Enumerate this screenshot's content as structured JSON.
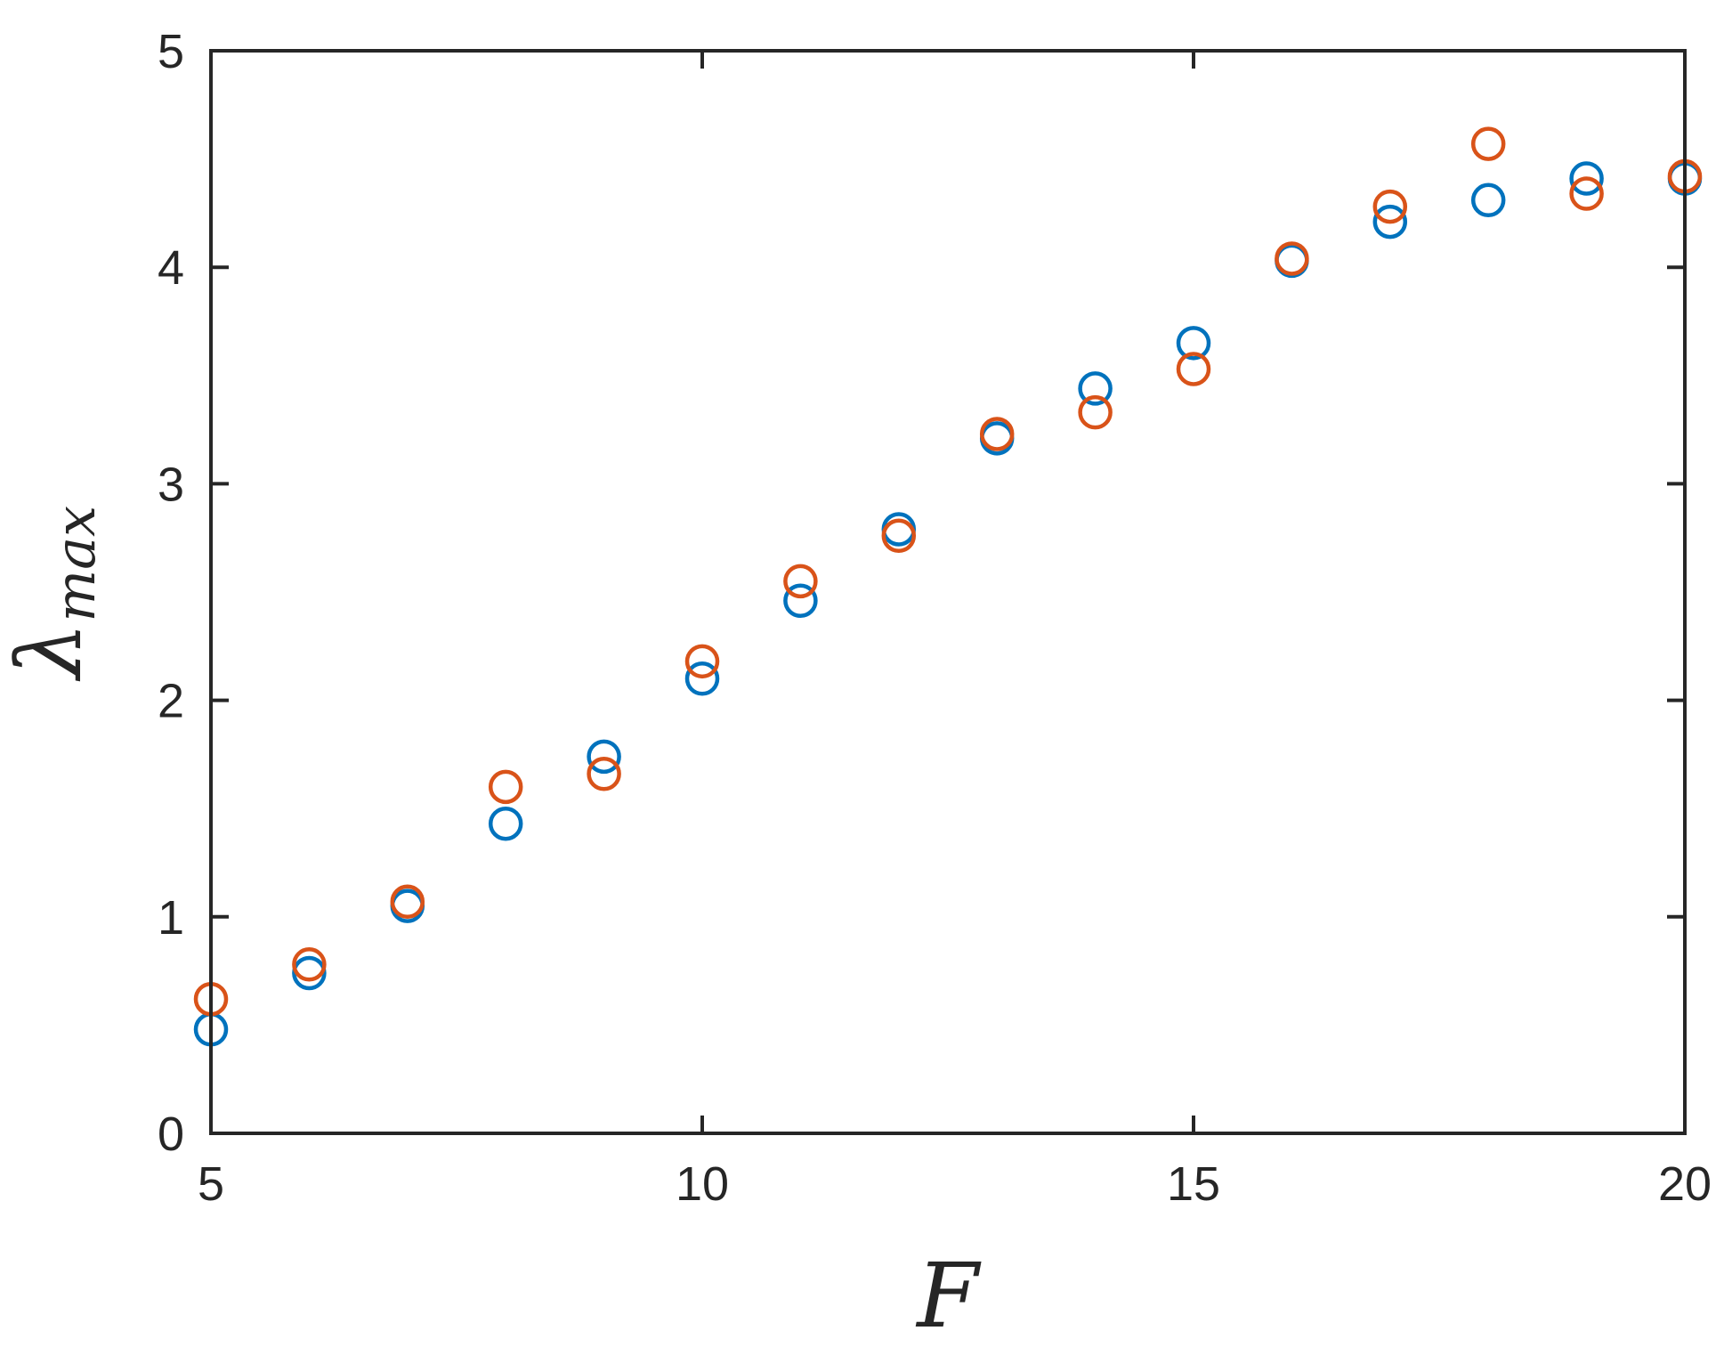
{
  "chart_data": {
    "type": "scatter",
    "xlabel": "F",
    "ylabel": {
      "main": "λ",
      "subscript": "max"
    },
    "xlim": [
      5,
      20
    ],
    "ylim": [
      0,
      5
    ],
    "xticks": [
      5,
      10,
      15,
      20
    ],
    "yticks": [
      0,
      1,
      2,
      3,
      4,
      5
    ],
    "grid": false,
    "legend": "none",
    "series": [
      {
        "color": "#0072BD",
        "marker": "circle-open",
        "points": [
          [
            5,
            0.48
          ],
          [
            6,
            0.74
          ],
          [
            7,
            1.05
          ],
          [
            8,
            1.43
          ],
          [
            9,
            1.74
          ],
          [
            10,
            2.1
          ],
          [
            11,
            2.46
          ],
          [
            12,
            2.79
          ],
          [
            13,
            3.21
          ],
          [
            14,
            3.44
          ],
          [
            15,
            3.65
          ],
          [
            16,
            4.03
          ],
          [
            17,
            4.21
          ],
          [
            18,
            4.31
          ],
          [
            19,
            4.41
          ],
          [
            20,
            4.41
          ]
        ]
      },
      {
        "color": "#D95319",
        "marker": "circle-open",
        "points": [
          [
            5,
            0.62
          ],
          [
            6,
            0.78
          ],
          [
            7,
            1.07
          ],
          [
            8,
            1.6
          ],
          [
            9,
            1.66
          ],
          [
            10,
            2.18
          ],
          [
            11,
            2.55
          ],
          [
            12,
            2.76
          ],
          [
            13,
            3.23
          ],
          [
            14,
            3.33
          ],
          [
            15,
            3.53
          ],
          [
            16,
            4.04
          ],
          [
            17,
            4.28
          ],
          [
            18,
            4.57
          ],
          [
            19,
            4.34
          ],
          [
            20,
            4.42
          ]
        ]
      }
    ]
  }
}
